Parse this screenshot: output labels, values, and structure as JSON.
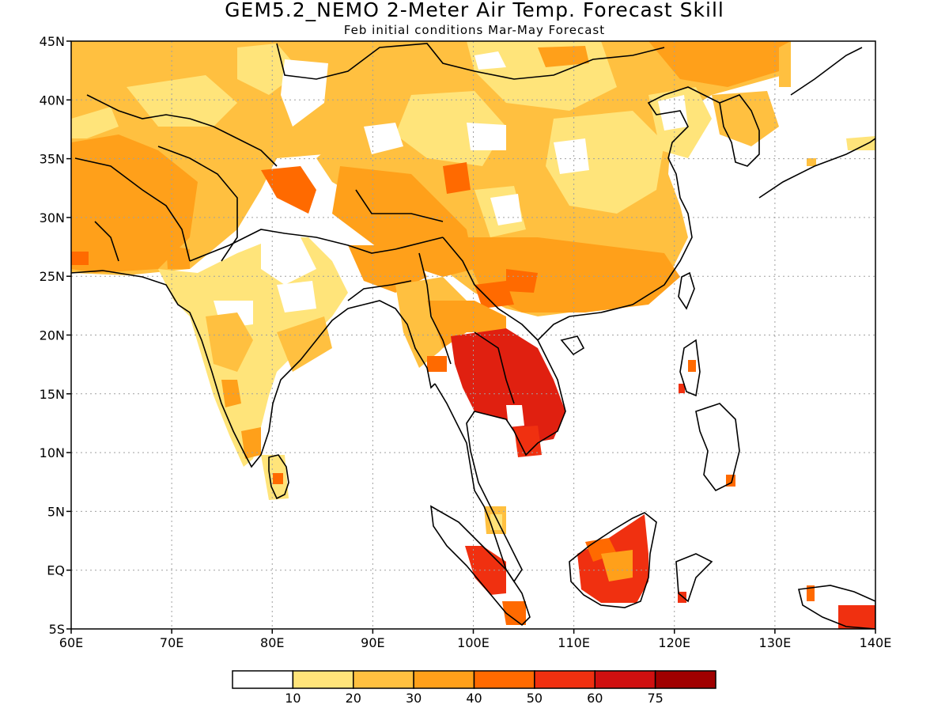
{
  "header": {
    "title": "GEM5.2_NEMO 2-Meter Air Temp. Forecast Skill",
    "subtitle": "Feb initial conditions  Mar-May Forecast"
  },
  "axes": {
    "lon_labels": [
      "60E",
      "70E",
      "80E",
      "90E",
      "100E",
      "110E",
      "120E",
      "130E",
      "140E"
    ],
    "lat_labels": [
      "45N",
      "40N",
      "35N",
      "30N",
      "25N",
      "20N",
      "15N",
      "10N",
      "5N",
      "EQ",
      "5S"
    ]
  },
  "legend": {
    "labels": [
      "10",
      "20",
      "30",
      "40",
      "50",
      "60",
      "75"
    ],
    "colors": [
      "#ffffff",
      "#ffe47a",
      "#ffc040",
      "#ffa01a",
      "#ff6a00",
      "#f03010",
      "#d01010",
      "#a00000"
    ]
  },
  "colors": {
    "land_outline": "#000000",
    "grid": "#a0a0a0"
  }
}
